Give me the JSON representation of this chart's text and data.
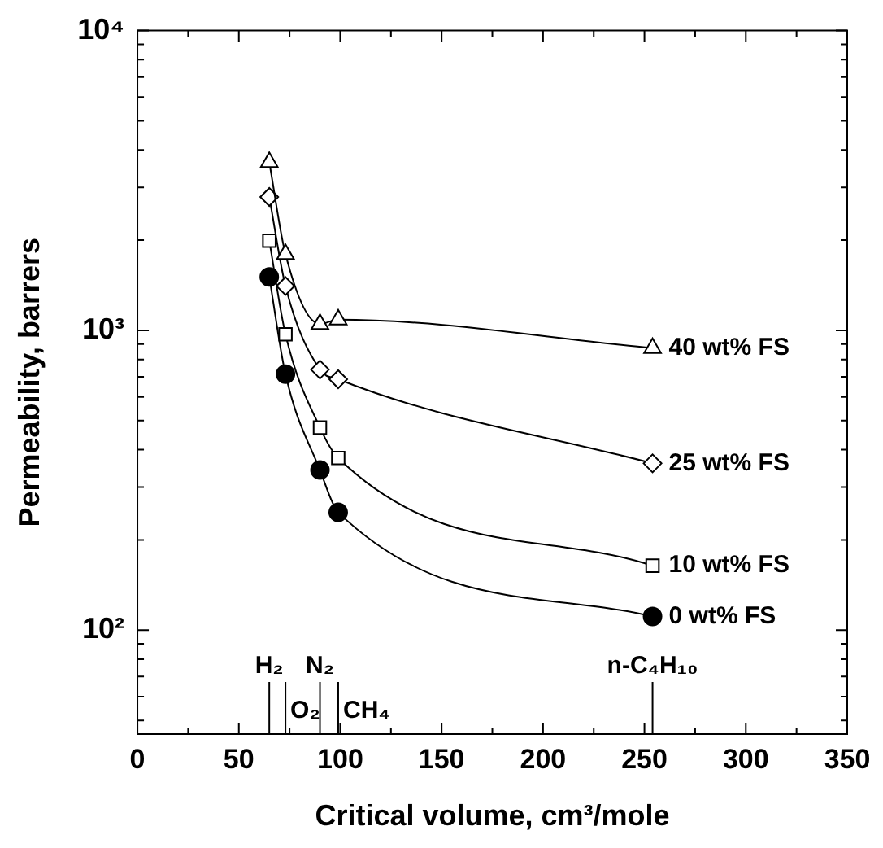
{
  "chart_data": {
    "type": "line",
    "xlabel": "Critical volume, cm³/mole",
    "ylabel": "Permeability, barrers",
    "log": "y",
    "grid": false,
    "legend": "right",
    "line_style": "solid",
    "x": [
      65,
      73,
      90,
      99,
      254
    ],
    "xlim": [
      0,
      350
    ],
    "xticks": [
      0,
      {
        "value": 25,
        "label": null
      },
      50,
      {
        "value": 75,
        "label": null
      },
      100,
      {
        "value": 125,
        "label": null
      },
      150,
      {
        "value": 175,
        "label": null
      },
      200,
      {
        "value": 225,
        "label": null
      },
      250,
      {
        "value": 275,
        "label": null
      },
      300,
      {
        "value": 325,
        "label": null
      },
      350
    ],
    "ylim": [
      45,
      10000
    ],
    "yticks": [
      {
        "value": 50,
        "label": null
      },
      {
        "value": 60,
        "label": null
      },
      {
        "value": 70,
        "label": null
      },
      {
        "value": 80,
        "label": null
      },
      {
        "value": 90,
        "label": null
      },
      {
        "value": 100,
        "label": "10²"
      },
      {
        "value": 200,
        "label": null
      },
      {
        "value": 300,
        "label": null
      },
      {
        "value": 400,
        "label": null
      },
      {
        "value": 500,
        "label": null
      },
      {
        "value": 600,
        "label": null
      },
      {
        "value": 700,
        "label": null
      },
      {
        "value": 800,
        "label": null
      },
      {
        "value": 900,
        "label": null
      },
      {
        "value": 1000,
        "label": "10³"
      },
      {
        "value": 2000,
        "label": null
      },
      {
        "value": 3000,
        "label": null
      },
      {
        "value": 4000,
        "label": null
      },
      {
        "value": 5000,
        "label": null
      },
      {
        "value": 6000,
        "label": null
      },
      {
        "value": 7000,
        "label": null
      },
      {
        "value": 8000,
        "label": null
      },
      {
        "value": 9000,
        "label": null
      },
      {
        "value": 10000,
        "label": "10⁴"
      }
    ],
    "series": [
      {
        "name": "40 wt% FS",
        "color": "#000000",
        "marker": "triangle",
        "values": [
          3640,
          1795,
          1050,
          1086,
          873
        ]
      },
      {
        "name": "25 wt% FS",
        "color": "#000000",
        "marker": "diamond",
        "values": [
          2786,
          1406,
          740,
          687,
          360
        ]
      },
      {
        "name": "10 wt% FS",
        "color": "#000000",
        "marker": "square",
        "values": [
          1992,
          970,
          474,
          375,
          164
        ]
      },
      {
        "name": "0 wt% FS",
        "color": "#000000",
        "marker": "circle",
        "values": [
          1507,
          714,
          342,
          247,
          111
        ]
      }
    ],
    "ref_lines": [
      {
        "axis": "x",
        "value": 65,
        "label": "H₂"
      },
      {
        "axis": "x",
        "value": 73,
        "label": "O₂"
      },
      {
        "axis": "x",
        "value": 90,
        "label": "N₂"
      },
      {
        "axis": "x",
        "value": 99,
        "label": "CH₄"
      },
      {
        "axis": "x",
        "value": 254,
        "label": "n-C₄H₁₀"
      }
    ]
  }
}
